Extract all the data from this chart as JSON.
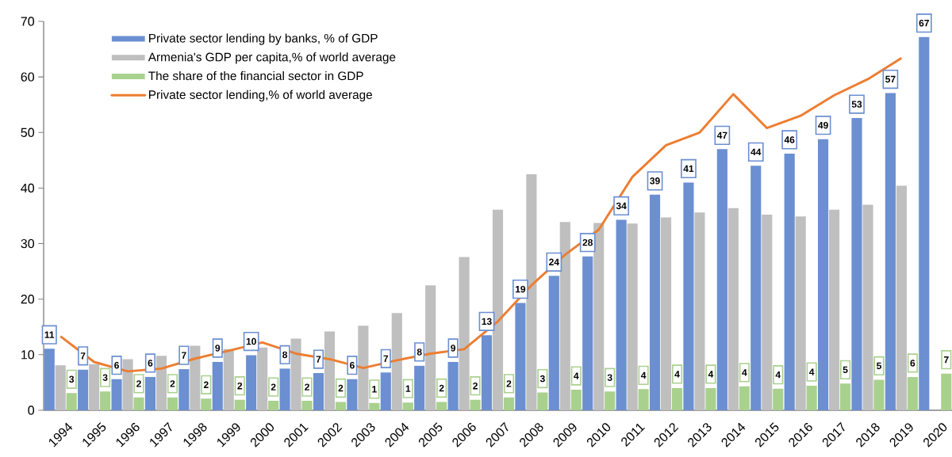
{
  "chart_data": {
    "type": "bar",
    "categories": [
      "1994",
      "1995",
      "1996",
      "1997",
      "1998",
      "1999",
      "2000",
      "2001",
      "2002",
      "2003",
      "2004",
      "2005",
      "2006",
      "2007",
      "2008",
      "2009",
      "2010",
      "2011",
      "2012",
      "2013",
      "2014",
      "2015",
      "2016",
      "2017",
      "2018",
      "2019",
      "2020"
    ],
    "series": [
      {
        "name": "Private sector lending by banks, % of GDP",
        "color": "#6b8fd1",
        "values": [
          11.1,
          7.3,
          5.6,
          6.0,
          7.4,
          8.7,
          9.9,
          7.5,
          6.7,
          5.6,
          6.8,
          8.0,
          8.7,
          13.5,
          19.3,
          24.2,
          27.7,
          34.3,
          38.8,
          41.0,
          47.0,
          44.0,
          46.2,
          48.8,
          52.6,
          57.1,
          67.2
        ],
        "value_labels": [
          "11",
          "7",
          "6",
          "6",
          "7",
          "9",
          "10",
          "8",
          "7",
          "6",
          "7",
          "8",
          "9",
          "13",
          "19",
          "24",
          "28",
          "34",
          "39",
          "41",
          "47",
          "44",
          "46",
          "49",
          "53",
          "57",
          "67"
        ]
      },
      {
        "name": "Armenia's GDP per capita,% of world average",
        "color": "#bfbfbf",
        "values": [
          8.1,
          8.3,
          9.2,
          9.8,
          11.6,
          11.0,
          11.3,
          12.9,
          14.2,
          15.2,
          17.5,
          22.5,
          27.6,
          36.1,
          42.5,
          33.9,
          33.7,
          33.6,
          34.7,
          35.6,
          36.4,
          35.2,
          34.9,
          36.1,
          37.0,
          40.4,
          null
        ]
      },
      {
        "name": "The share of the financial sector in GDP",
        "color": "#a9d18e",
        "values": [
          3.1,
          3.4,
          2.3,
          2.3,
          2.1,
          1.9,
          1.7,
          1.7,
          1.5,
          1.3,
          1.4,
          1.5,
          1.9,
          2.3,
          3.2,
          3.7,
          3.4,
          3.8,
          4.0,
          4.0,
          4.3,
          3.9,
          4.4,
          4.8,
          5.5,
          6.0,
          6.6
        ],
        "value_labels": [
          "3",
          "3",
          "2",
          "2",
          "2",
          "2",
          "2",
          "2",
          "2",
          "1",
          "1",
          "2",
          "2",
          "2",
          "3",
          "4",
          "3",
          "4",
          "4",
          "4",
          "4",
          "4",
          "4",
          "5",
          "5",
          "6",
          "7"
        ]
      },
      {
        "name": "Private sector lending,% of world average",
        "type": "line",
        "color": "#ed7d31",
        "values": [
          13.3,
          8.7,
          7.0,
          7.5,
          9.3,
          10.7,
          12.2,
          10.2,
          9.2,
          7.6,
          9.0,
          10.2,
          11.0,
          16.0,
          22.5,
          28.0,
          32.5,
          42.0,
          47.7,
          50.0,
          56.9,
          50.8,
          53.0,
          56.7,
          59.6,
          63.4,
          null
        ]
      }
    ],
    "ylim": [
      0,
      70
    ],
    "yticks": [
      0,
      10,
      20,
      30,
      40,
      50,
      60,
      70
    ],
    "grid": false,
    "legend": "top left"
  }
}
